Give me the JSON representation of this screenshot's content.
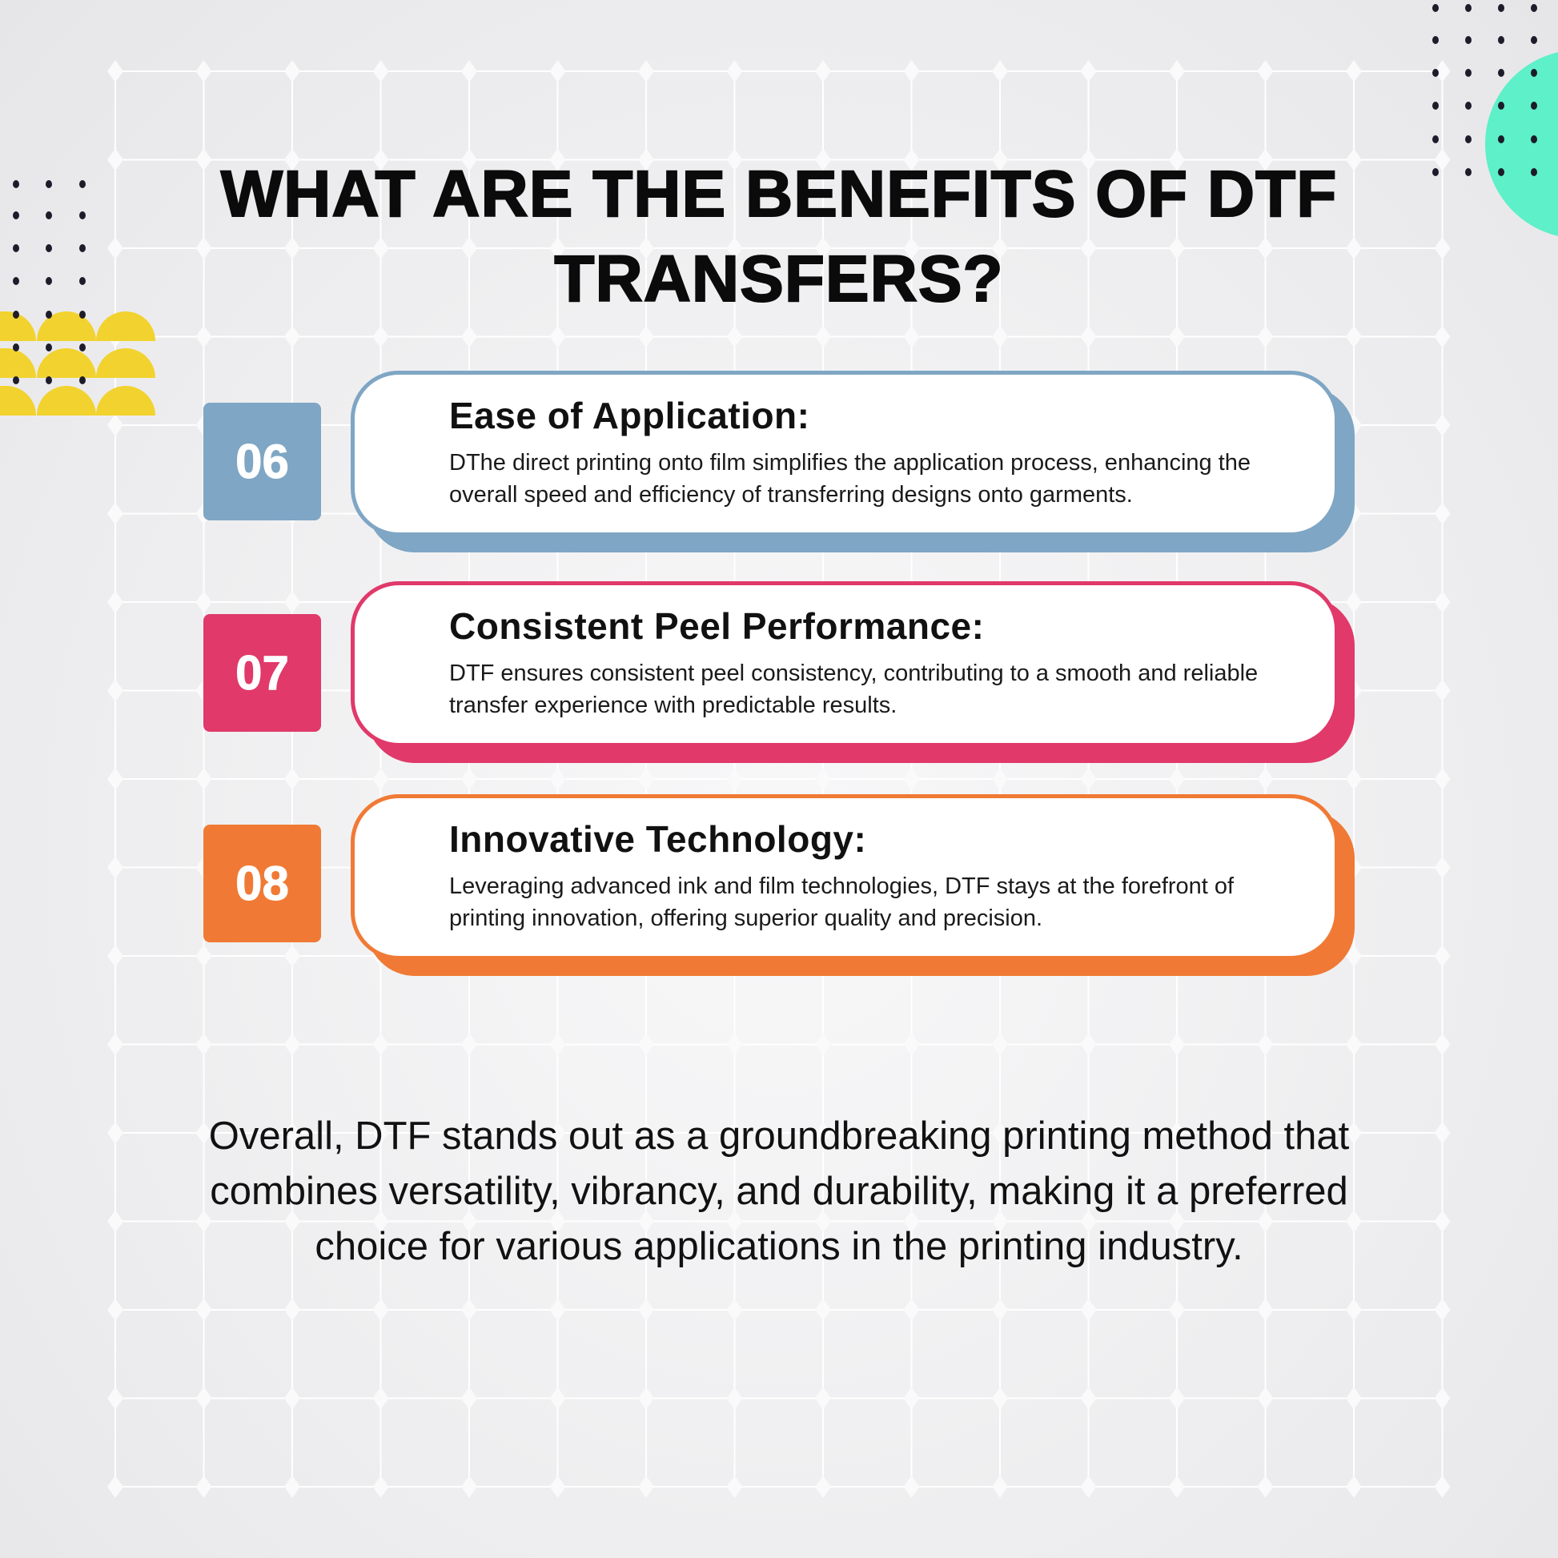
{
  "title": "WHAT ARE THE BENEFITS OF DTF TRANSFERS?",
  "colors": {
    "blue": "#7fa6c4",
    "pink": "#e0396a",
    "orange": "#f07a35",
    "teal": "#5ef0c8",
    "yellow": "#f2d22e"
  },
  "benefits": [
    {
      "number": "06",
      "heading": "Ease of Application:",
      "text": "DThe direct printing onto film simplifies the application process, enhancing the overall speed and efficiency of transferring designs onto garments."
    },
    {
      "number": "07",
      "heading": "Consistent Peel Performance:",
      "text": "DTF ensures consistent peel consistency, contributing to a smooth and reliable transfer experience with predictable results."
    },
    {
      "number": "08",
      "heading": "Innovative Technology:",
      "text": "Leveraging advanced ink and film technologies, DTF stays at the forefront of printing innovation, offering superior quality and precision."
    }
  ],
  "summary": "Overall, DTF stands out as a groundbreaking printing method that combines versatility, vibrancy, and durability, making it a preferred choice for various applications in the printing industry."
}
